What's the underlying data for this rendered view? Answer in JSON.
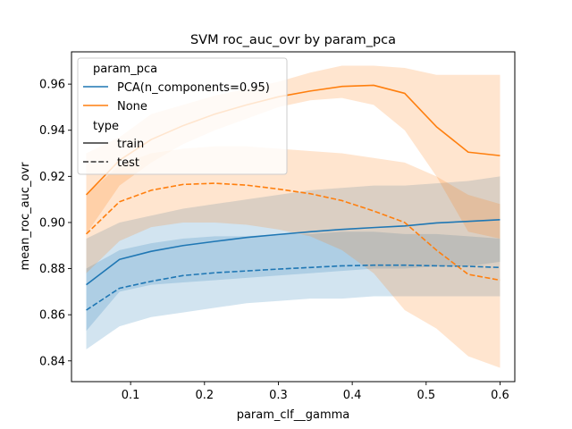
{
  "chart_data": {
    "type": "line",
    "title": "SVM roc_auc_ovr by param_pca",
    "xlabel": "param_clf__gamma",
    "ylabel": "mean_roc_auc_ovr",
    "xlim": [
      0.02,
      0.62
    ],
    "ylim": [
      0.831,
      0.974
    ],
    "xticks": [
      0.1,
      0.2,
      0.3,
      0.4,
      0.5,
      0.6
    ],
    "xtick_labels": [
      "0.1",
      "0.2",
      "0.3",
      "0.4",
      "0.5",
      "0.6"
    ],
    "yticks": [
      0.84,
      0.86,
      0.88,
      0.9,
      0.92,
      0.94,
      0.96
    ],
    "ytick_labels": [
      "0.84",
      "0.86",
      "0.88",
      "0.90",
      "0.92",
      "0.94",
      "0.96"
    ],
    "grid": false,
    "legend": {
      "placement": "top-left",
      "hue_title": "param_pca",
      "hue_entries": [
        {
          "label": "PCA(n_components=0.95)",
          "color": "#1f77b4"
        },
        {
          "label": "None",
          "color": "#ff7f0e"
        }
      ],
      "style_title": "type",
      "style_entries": [
        {
          "label": "train",
          "dash": "solid"
        },
        {
          "label": "test",
          "dash": "dashed"
        }
      ]
    },
    "x": [
      0.04,
      0.085,
      0.128,
      0.171,
      0.214,
      0.257,
      0.3,
      0.343,
      0.386,
      0.429,
      0.471,
      0.514,
      0.557,
      0.6
    ],
    "series": [
      {
        "name": "PCA(n_components=0.95)",
        "style": "train",
        "color": "#1f77b4",
        "dash": "solid",
        "values": [
          0.873,
          0.884,
          0.8875,
          0.89,
          0.8918,
          0.8935,
          0.8948,
          0.896,
          0.897,
          0.8978,
          0.8985,
          0.8998,
          0.9005,
          0.9012
        ],
        "lower": [
          0.853,
          0.87,
          0.873,
          0.874,
          0.875,
          0.876,
          0.877,
          0.878,
          0.879,
          0.88,
          0.88,
          0.881,
          0.881,
          0.883
        ],
        "upper": [
          0.893,
          0.9,
          0.903,
          0.906,
          0.908,
          0.91,
          0.912,
          0.914,
          0.915,
          0.916,
          0.916,
          0.917,
          0.918,
          0.92
        ]
      },
      {
        "name": "PCA(n_components=0.95)",
        "style": "test",
        "color": "#1f77b4",
        "dash": "dashed",
        "values": [
          0.862,
          0.8715,
          0.8745,
          0.877,
          0.8782,
          0.879,
          0.8798,
          0.8805,
          0.8812,
          0.8815,
          0.8815,
          0.8812,
          0.881,
          0.8805
        ],
        "lower": [
          0.845,
          0.855,
          0.859,
          0.861,
          0.863,
          0.865,
          0.866,
          0.867,
          0.867,
          0.868,
          0.868,
          0.868,
          0.868,
          0.868
        ],
        "upper": [
          0.88,
          0.888,
          0.891,
          0.893,
          0.894,
          0.894,
          0.895,
          0.895,
          0.896,
          0.896,
          0.895,
          0.895,
          0.894,
          0.893
        ]
      },
      {
        "name": "None",
        "style": "train",
        "color": "#ff7f0e",
        "dash": "solid",
        "values": [
          0.912,
          0.927,
          0.936,
          0.942,
          0.947,
          0.951,
          0.9545,
          0.957,
          0.959,
          0.9595,
          0.956,
          0.9415,
          0.9305,
          0.929
        ],
        "lower": [
          0.895,
          0.916,
          0.926,
          0.934,
          0.94,
          0.945,
          0.95,
          0.953,
          0.954,
          0.951,
          0.94,
          0.92,
          0.896,
          0.893
        ],
        "upper": [
          0.93,
          0.937,
          0.947,
          0.951,
          0.955,
          0.958,
          0.961,
          0.965,
          0.968,
          0.968,
          0.967,
          0.964,
          0.964,
          0.964
        ]
      },
      {
        "name": "None",
        "style": "test",
        "color": "#ff7f0e",
        "dash": "dashed",
        "values": [
          0.895,
          0.909,
          0.914,
          0.9165,
          0.917,
          0.9162,
          0.9145,
          0.9125,
          0.9095,
          0.905,
          0.9,
          0.888,
          0.8775,
          0.875
        ],
        "lower": [
          0.878,
          0.892,
          0.898,
          0.9,
          0.9,
          0.899,
          0.897,
          0.894,
          0.888,
          0.878,
          0.862,
          0.854,
          0.842,
          0.837
        ],
        "upper": [
          0.912,
          0.925,
          0.93,
          0.932,
          0.933,
          0.933,
          0.932,
          0.931,
          0.93,
          0.928,
          0.926,
          0.92,
          0.912,
          0.908
        ]
      }
    ]
  }
}
